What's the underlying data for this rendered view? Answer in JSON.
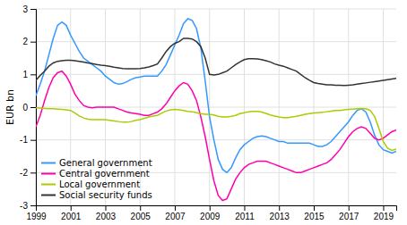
{
  "chart_data": {
    "type": "line",
    "y_label": "EUR bn",
    "x": [
      1999.0,
      1999.25,
      1999.5,
      1999.75,
      2000.0,
      2000.25,
      2000.5,
      2000.75,
      2001.0,
      2001.25,
      2001.5,
      2001.75,
      2002.0,
      2002.25,
      2002.5,
      2002.75,
      2003.0,
      2003.25,
      2003.5,
      2003.75,
      2004.0,
      2004.25,
      2004.5,
      2004.75,
      2005.0,
      2005.25,
      2005.5,
      2005.75,
      2006.0,
      2006.25,
      2006.5,
      2006.75,
      2007.0,
      2007.25,
      2007.5,
      2007.75,
      2008.0,
      2008.25,
      2008.5,
      2008.75,
      2009.0,
      2009.25,
      2009.5,
      2009.75,
      2010.0,
      2010.25,
      2010.5,
      2010.75,
      2011.0,
      2011.25,
      2011.5,
      2011.75,
      2012.0,
      2012.25,
      2012.5,
      2012.75,
      2013.0,
      2013.25,
      2013.5,
      2013.75,
      2014.0,
      2014.25,
      2014.5,
      2014.75,
      2015.0,
      2015.25,
      2015.5,
      2015.75,
      2016.0,
      2016.25,
      2016.5,
      2016.75,
      2017.0,
      2017.25,
      2017.5,
      2017.75,
      2018.0,
      2018.25,
      2018.5,
      2018.75,
      2019.0,
      2019.25,
      2019.5,
      2019.75
    ],
    "series": [
      {
        "name": "General government",
        "color": "#3399ff",
        "values": [
          0.35,
          0.7,
          1.1,
          1.6,
          2.1,
          2.5,
          2.6,
          2.5,
          2.2,
          1.95,
          1.7,
          1.5,
          1.4,
          1.3,
          1.2,
          1.1,
          0.95,
          0.85,
          0.75,
          0.7,
          0.72,
          0.78,
          0.85,
          0.9,
          0.92,
          0.95,
          0.95,
          0.95,
          0.95,
          1.1,
          1.3,
          1.6,
          1.9,
          2.2,
          2.55,
          2.7,
          2.65,
          2.4,
          1.8,
          0.8,
          -0.3,
          -1.0,
          -1.6,
          -1.9,
          -2.0,
          -1.85,
          -1.55,
          -1.3,
          -1.15,
          -1.05,
          -0.95,
          -0.9,
          -0.88,
          -0.9,
          -0.95,
          -1.0,
          -1.05,
          -1.05,
          -1.1,
          -1.1,
          -1.1,
          -1.1,
          -1.1,
          -1.1,
          -1.15,
          -1.2,
          -1.2,
          -1.15,
          -1.05,
          -0.9,
          -0.75,
          -0.6,
          -0.45,
          -0.25,
          -0.1,
          -0.05,
          -0.15,
          -0.45,
          -0.85,
          -1.15,
          -1.3,
          -1.35,
          -1.4,
          -1.35
        ]
      },
      {
        "name": "Central government",
        "color": "#ff00aa",
        "values": [
          -0.6,
          -0.25,
          0.2,
          0.6,
          0.9,
          1.05,
          1.1,
          0.95,
          0.7,
          0.4,
          0.2,
          0.05,
          0.0,
          -0.02,
          0.0,
          0.0,
          0.0,
          0.0,
          0.0,
          -0.05,
          -0.1,
          -0.15,
          -0.18,
          -0.2,
          -0.22,
          -0.25,
          -0.25,
          -0.2,
          -0.15,
          -0.05,
          0.1,
          0.3,
          0.5,
          0.65,
          0.75,
          0.7,
          0.5,
          0.2,
          -0.3,
          -0.9,
          -1.6,
          -2.25,
          -2.7,
          -2.85,
          -2.8,
          -2.5,
          -2.2,
          -2.0,
          -1.85,
          -1.75,
          -1.7,
          -1.65,
          -1.65,
          -1.65,
          -1.7,
          -1.75,
          -1.8,
          -1.85,
          -1.9,
          -1.95,
          -2.0,
          -2.0,
          -1.95,
          -1.9,
          -1.85,
          -1.8,
          -1.75,
          -1.7,
          -1.6,
          -1.45,
          -1.3,
          -1.1,
          -0.9,
          -0.75,
          -0.65,
          -0.6,
          -0.65,
          -0.8,
          -0.95,
          -1.0,
          -0.95,
          -0.85,
          -0.75,
          -0.7
        ]
      },
      {
        "name": "Local government",
        "color": "#aacc00",
        "values": [
          -0.02,
          -0.03,
          -0.04,
          -0.05,
          -0.05,
          -0.06,
          -0.07,
          -0.08,
          -0.1,
          -0.18,
          -0.27,
          -0.33,
          -0.37,
          -0.38,
          -0.38,
          -0.38,
          -0.38,
          -0.4,
          -0.42,
          -0.44,
          -0.46,
          -0.46,
          -0.44,
          -0.4,
          -0.38,
          -0.34,
          -0.3,
          -0.27,
          -0.25,
          -0.18,
          -0.12,
          -0.08,
          -0.07,
          -0.08,
          -0.1,
          -0.13,
          -0.14,
          -0.17,
          -0.2,
          -0.22,
          -0.22,
          -0.24,
          -0.28,
          -0.3,
          -0.3,
          -0.28,
          -0.25,
          -0.2,
          -0.17,
          -0.14,
          -0.13,
          -0.13,
          -0.15,
          -0.19,
          -0.24,
          -0.27,
          -0.3,
          -0.32,
          -0.32,
          -0.3,
          -0.28,
          -0.25,
          -0.22,
          -0.2,
          -0.18,
          -0.17,
          -0.16,
          -0.14,
          -0.12,
          -0.1,
          -0.1,
          -0.08,
          -0.07,
          -0.06,
          -0.05,
          -0.04,
          -0.05,
          -0.1,
          -0.28,
          -0.65,
          -1.05,
          -1.25,
          -1.32,
          -1.28
        ]
      },
      {
        "name": "Social security funds",
        "color": "#333333",
        "values": [
          0.82,
          0.97,
          1.1,
          1.25,
          1.35,
          1.4,
          1.42,
          1.43,
          1.43,
          1.42,
          1.4,
          1.38,
          1.35,
          1.33,
          1.3,
          1.28,
          1.27,
          1.25,
          1.22,
          1.2,
          1.18,
          1.17,
          1.17,
          1.17,
          1.18,
          1.2,
          1.23,
          1.27,
          1.32,
          1.5,
          1.7,
          1.85,
          1.95,
          2.0,
          2.1,
          2.1,
          2.08,
          2.0,
          1.85,
          1.5,
          1.0,
          0.98,
          1.0,
          1.05,
          1.1,
          1.2,
          1.3,
          1.38,
          1.45,
          1.48,
          1.48,
          1.47,
          1.45,
          1.42,
          1.38,
          1.32,
          1.28,
          1.25,
          1.2,
          1.15,
          1.1,
          1.0,
          0.9,
          0.82,
          0.75,
          0.72,
          0.7,
          0.68,
          0.68,
          0.67,
          0.67,
          0.66,
          0.67,
          0.68,
          0.7,
          0.72,
          0.74,
          0.76,
          0.78,
          0.8,
          0.82,
          0.84,
          0.86,
          0.88
        ]
      }
    ],
    "xlim": [
      1999,
      2019.75
    ],
    "ylim": [
      -3,
      3
    ],
    "xticks": [
      1999,
      2001,
      2003,
      2005,
      2007,
      2009,
      2011,
      2013,
      2015,
      2017,
      2019
    ],
    "yticks": [
      -3,
      -2,
      -1,
      0,
      1,
      2,
      3
    ],
    "grid": true,
    "legend": "lower left"
  }
}
